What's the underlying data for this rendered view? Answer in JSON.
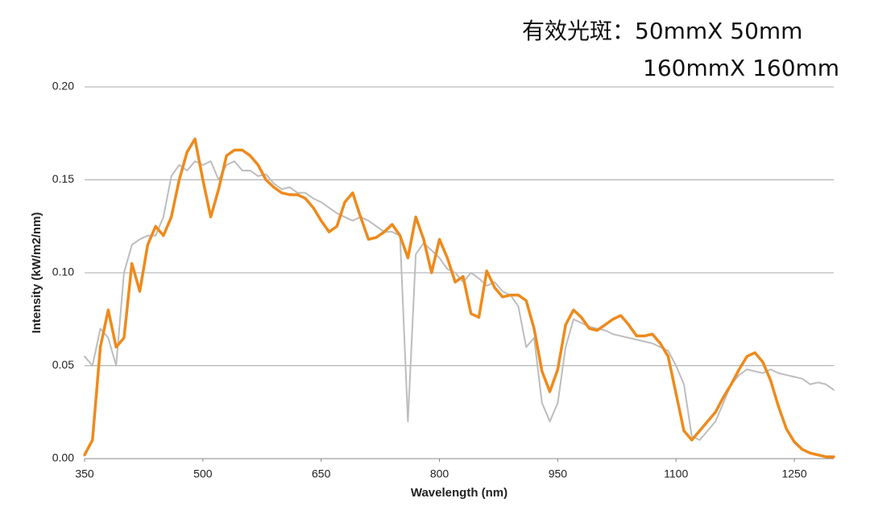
{
  "chart_data": {
    "type": "line",
    "annotations": [
      "有效光斑：50mmX 50mm",
      "160mmX 160mm"
    ],
    "x_label": "Wavelength (nm)",
    "y_label": "Intensity (kW/m2/nm)",
    "x": [
      350,
      360,
      370,
      380,
      390,
      400,
      410,
      420,
      430,
      440,
      450,
      460,
      470,
      480,
      490,
      500,
      510,
      520,
      530,
      540,
      550,
      560,
      570,
      580,
      590,
      600,
      610,
      620,
      630,
      640,
      650,
      660,
      670,
      680,
      690,
      700,
      710,
      720,
      730,
      740,
      750,
      760,
      770,
      780,
      790,
      800,
      810,
      820,
      830,
      840,
      850,
      860,
      870,
      880,
      890,
      900,
      910,
      920,
      930,
      940,
      950,
      960,
      970,
      980,
      990,
      1000,
      1010,
      1020,
      1030,
      1040,
      1050,
      1060,
      1070,
      1080,
      1090,
      1100,
      1110,
      1120,
      1130,
      1140,
      1150,
      1160,
      1170,
      1180,
      1190,
      1200,
      1210,
      1220,
      1230,
      1240,
      1250,
      1260,
      1270,
      1280,
      1290,
      1300
    ],
    "series": [
      {
        "color": "#bdbdbd",
        "width": 2,
        "values": [
          0.055,
          0.05,
          0.07,
          0.065,
          0.05,
          0.1,
          0.115,
          0.118,
          0.12,
          0.12,
          0.13,
          0.152,
          0.158,
          0.155,
          0.16,
          0.158,
          0.16,
          0.15,
          0.158,
          0.16,
          0.155,
          0.155,
          0.152,
          0.153,
          0.148,
          0.145,
          0.146,
          0.143,
          0.143,
          0.14,
          0.138,
          0.135,
          0.132,
          0.13,
          0.128,
          0.13,
          0.128,
          0.125,
          0.122,
          0.122,
          0.12,
          0.02,
          0.11,
          0.116,
          0.112,
          0.108,
          0.102,
          0.1,
          0.095,
          0.1,
          0.097,
          0.093,
          0.095,
          0.09,
          0.088,
          0.082,
          0.06,
          0.065,
          0.03,
          0.02,
          0.03,
          0.06,
          0.075,
          0.073,
          0.071,
          0.07,
          0.069,
          0.067,
          0.066,
          0.065,
          0.064,
          0.063,
          0.062,
          0.06,
          0.058,
          0.05,
          0.04,
          0.012,
          0.01,
          0.015,
          0.02,
          0.03,
          0.04,
          0.045,
          0.048,
          0.047,
          0.046,
          0.048,
          0.046,
          0.045,
          0.044,
          0.043,
          0.04,
          0.041,
          0.04,
          0.037
        ]
      },
      {
        "color": "#ee8a1c",
        "width": 3.5,
        "values": [
          0.002,
          0.01,
          0.06,
          0.08,
          0.06,
          0.065,
          0.105,
          0.09,
          0.115,
          0.125,
          0.12,
          0.13,
          0.15,
          0.165,
          0.172,
          0.15,
          0.13,
          0.145,
          0.163,
          0.166,
          0.166,
          0.163,
          0.158,
          0.15,
          0.146,
          0.143,
          0.142,
          0.142,
          0.14,
          0.135,
          0.128,
          0.122,
          0.125,
          0.138,
          0.143,
          0.13,
          0.118,
          0.119,
          0.122,
          0.126,
          0.12,
          0.108,
          0.13,
          0.118,
          0.1,
          0.118,
          0.108,
          0.095,
          0.098,
          0.078,
          0.076,
          0.101,
          0.092,
          0.087,
          0.088,
          0.088,
          0.085,
          0.07,
          0.047,
          0.036,
          0.048,
          0.072,
          0.08,
          0.076,
          0.07,
          0.069,
          0.072,
          0.075,
          0.077,
          0.072,
          0.066,
          0.066,
          0.067,
          0.062,
          0.055,
          0.035,
          0.015,
          0.01,
          0.015,
          0.02,
          0.025,
          0.033,
          0.04,
          0.048,
          0.055,
          0.057,
          0.052,
          0.042,
          0.028,
          0.016,
          0.009,
          0.005,
          0.003,
          0.002,
          0.001,
          0.001
        ]
      }
    ],
    "xlim": [
      350,
      1300
    ],
    "xticks": [
      350,
      500,
      650,
      800,
      950,
      1100,
      1250
    ],
    "ylim": [
      0,
      0.2
    ],
    "yticks": [
      {
        "value": 0,
        "label": "0.00"
      },
      {
        "value": 0.05,
        "label": "0.05"
      },
      {
        "value": 0.1,
        "label": "0.10"
      },
      {
        "value": 0.15,
        "label": "0.15"
      },
      {
        "value": 0.2,
        "label": "0.20"
      }
    ],
    "grid": true
  }
}
